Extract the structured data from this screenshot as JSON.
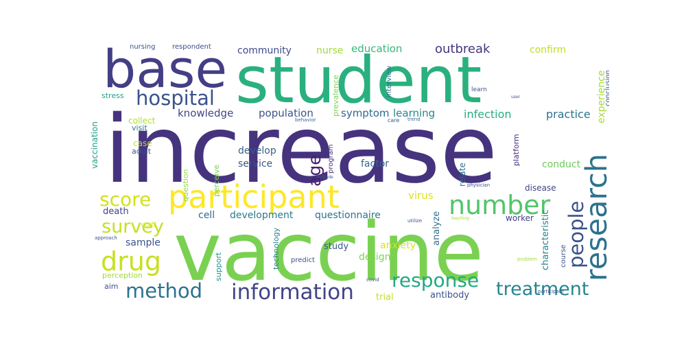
{
  "wordcloud": {
    "words": [
      {
        "text": "increase",
        "color": "#46337e"
      },
      {
        "text": "vaccine",
        "color": "#7ad151"
      },
      {
        "text": "student",
        "color": "#2ab07f"
      },
      {
        "text": "base",
        "color": "#433e85"
      },
      {
        "text": "participant",
        "color": "#fde725"
      },
      {
        "text": "research",
        "color": "#2c728e"
      },
      {
        "text": "number",
        "color": "#52c569"
      },
      {
        "text": "information",
        "color": "#414487"
      },
      {
        "text": "drug",
        "color": "#c8e020"
      },
      {
        "text": "hospital",
        "color": "#3b528b"
      },
      {
        "text": "response",
        "color": "#22a884"
      },
      {
        "text": "method",
        "color": "#2c728e"
      },
      {
        "text": "treatment",
        "color": "#25858e"
      },
      {
        "text": "survey",
        "color": "#c5e021"
      },
      {
        "text": "people",
        "color": "#3b528b"
      },
      {
        "text": "score",
        "color": "#d2e21b"
      },
      {
        "text": "age",
        "color": "#481f70"
      },
      {
        "text": "outbreak",
        "color": "#46337e"
      },
      {
        "text": "education",
        "color": "#35b779"
      },
      {
        "text": "community",
        "color": "#3e4989"
      },
      {
        "text": "nurse",
        "color": "#9fda3a"
      },
      {
        "text": "confirm",
        "color": "#bddf26"
      },
      {
        "text": "knowledge",
        "color": "#414487"
      },
      {
        "text": "population",
        "color": "#3b528b"
      },
      {
        "text": "symptom",
        "color": "#31688e"
      },
      {
        "text": "learning",
        "color": "#25858e"
      },
      {
        "text": "infection",
        "color": "#27ad81"
      },
      {
        "text": "practice",
        "color": "#2c728e"
      },
      {
        "text": "experience",
        "color": "#a5db36"
      },
      {
        "text": "develop",
        "color": "#355f8d"
      },
      {
        "text": "service",
        "color": "#3b528b"
      },
      {
        "text": "factor",
        "color": "#31688e"
      },
      {
        "text": "conduct",
        "color": "#6ccd5a"
      },
      {
        "text": "virus",
        "color": "#dde318"
      },
      {
        "text": "cell",
        "color": "#31688e"
      },
      {
        "text": "development",
        "color": "#2a788e"
      },
      {
        "text": "questionnaire",
        "color": "#2c728e"
      },
      {
        "text": "analyze",
        "color": "#2e6f8e"
      },
      {
        "text": "death",
        "color": "#424086"
      },
      {
        "text": "sample",
        "color": "#3b528b"
      },
      {
        "text": "anxiety",
        "color": "#d8e219"
      },
      {
        "text": "study",
        "color": "#39568c"
      },
      {
        "text": "design",
        "color": "#7fd34e"
      },
      {
        "text": "antibody",
        "color": "#3b528b"
      },
      {
        "text": "trial",
        "color": "#c2df23"
      },
      {
        "text": "characteristic",
        "color": "#26828e"
      },
      {
        "text": "worker",
        "color": "#424086"
      },
      {
        "text": "disease",
        "color": "#404688"
      },
      {
        "text": "relate",
        "color": "#2e6f8e"
      },
      {
        "text": "collect",
        "color": "#b2dd2d"
      },
      {
        "text": "case",
        "color": "#b8de29"
      },
      {
        "text": "vaccination",
        "color": "#1f9e89"
      },
      {
        "text": "nursing",
        "color": "#3b528b"
      },
      {
        "text": "respondent",
        "color": "#3e4989"
      },
      {
        "text": "stress",
        "color": "#20a386"
      },
      {
        "text": "platform",
        "color": "#472d7b"
      },
      {
        "text": "visit",
        "color": "#2a788e"
      },
      {
        "text": "adult",
        "color": "#3b528b"
      },
      {
        "text": "question",
        "color": "#95d840"
      },
      {
        "text": "perceive",
        "color": "#7ad151"
      },
      {
        "text": "program",
        "color": "#46337e"
      },
      {
        "text": "prevalence",
        "color": "#7ad151"
      },
      {
        "text": "interview",
        "color": "#2c728e"
      },
      {
        "text": "conclusion",
        "color": "#3b528b"
      },
      {
        "text": "learn",
        "color": "#3b528b"
      },
      {
        "text": "staff",
        "color": "#dde318"
      },
      {
        "text": "perception",
        "color": "#a2da37"
      },
      {
        "text": "aim",
        "color": "#3b528b"
      },
      {
        "text": "technology",
        "color": "#26828e"
      },
      {
        "text": "support",
        "color": "#21918c"
      },
      {
        "text": "predict",
        "color": "#3b528b"
      },
      {
        "text": "course",
        "color": "#3b528b"
      },
      {
        "text": "approach",
        "color": "#3b528b"
      },
      {
        "text": "physician",
        "color": "#3b528b"
      },
      {
        "text": "behavior",
        "color": "#31688e"
      },
      {
        "text": "care",
        "color": "#39568c"
      },
      {
        "text": "trend",
        "color": "#31688e"
      },
      {
        "text": "attitude",
        "color": "#3b528b"
      },
      {
        "text": "utilize",
        "color": "#3b528b"
      },
      {
        "text": "teaching",
        "color": "#a5db36"
      },
      {
        "text": "problem",
        "color": "#a5db36"
      },
      {
        "text": "participate",
        "color": "#3b528b"
      },
      {
        "text": "covid",
        "color": "#3b528b"
      },
      {
        "text": "user",
        "color": "#3b528b"
      }
    ]
  }
}
